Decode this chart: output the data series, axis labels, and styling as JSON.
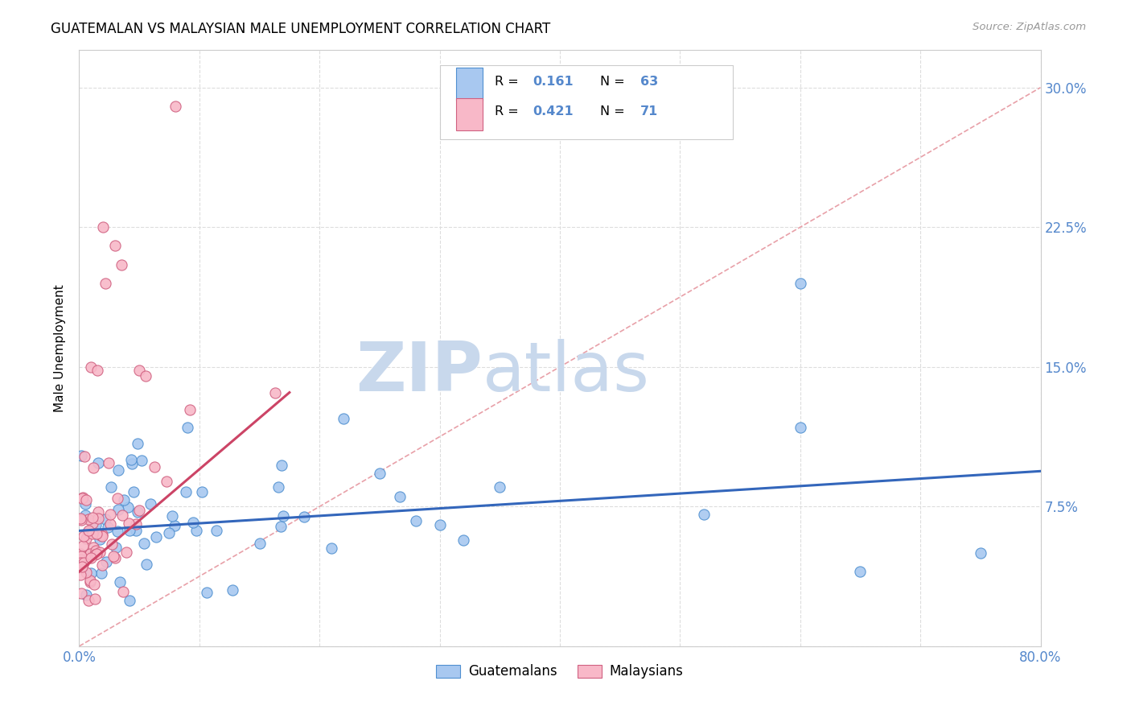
{
  "title": "GUATEMALAN VS MALAYSIAN MALE UNEMPLOYMENT CORRELATION CHART",
  "source": "Source: ZipAtlas.com",
  "ylabel": "Male Unemployment",
  "xlim": [
    0.0,
    0.8
  ],
  "ylim": [
    0.0,
    0.32
  ],
  "yticks": [
    0.0,
    0.075,
    0.15,
    0.225,
    0.3
  ],
  "xticks": [
    0.0,
    0.1,
    0.2,
    0.3,
    0.4,
    0.5,
    0.6,
    0.7,
    0.8
  ],
  "legend_r1": "R =  0.161",
  "legend_n1": "N = 63",
  "legend_r2": "R =  0.421",
  "legend_n2": "N = 71",
  "blue_fill": "#A8C8F0",
  "blue_edge": "#5090D0",
  "pink_fill": "#F8B8C8",
  "pink_edge": "#D06080",
  "line_blue_color": "#3366BB",
  "line_pink_color": "#CC4466",
  "diag_color": "#E8A0A8",
  "grid_color": "#DDDDDD",
  "tick_color": "#5588CC",
  "watermark_zip_color": "#C8D8EC",
  "watermark_atlas_color": "#C8D8EC",
  "blue_slope": 0.04,
  "blue_intercept": 0.062,
  "pink_slope": 0.55,
  "pink_intercept": 0.04,
  "pink_line_xmax": 0.175
}
